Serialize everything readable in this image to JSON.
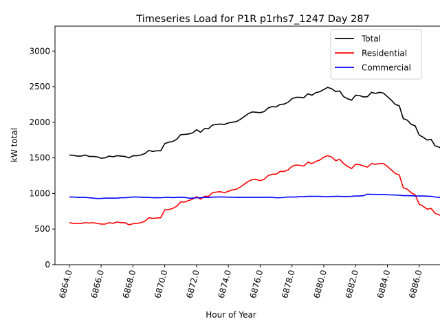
{
  "chart_data": {
    "type": "line",
    "title": "Timeseries Load for P1R p1rhs7_1247  Day 287",
    "xlabel": "Hour of Year",
    "ylabel": "kW total",
    "xlim": [
      6863.1,
      6888.0
    ],
    "ylim": [
      0,
      3350
    ],
    "xticks": [
      6864,
      6866,
      6868,
      6870,
      6872,
      6874,
      6876,
      6878,
      6880,
      6882,
      6884,
      6886
    ],
    "xtick_labels": [
      "6864.0",
      "6866.0",
      "6868.0",
      "6870.0",
      "6872.0",
      "6874.0",
      "6876.0",
      "6878.0",
      "6880.0",
      "6882.0",
      "6884.0",
      "6886.0"
    ],
    "yticks": [
      0,
      500,
      1000,
      1500,
      2000,
      2500,
      3000
    ],
    "ytick_labels": [
      "0",
      "500",
      "1000",
      "1500",
      "2000",
      "2500",
      "3000"
    ],
    "grid": false,
    "legend_position": "top-right",
    "x_start": 6864.0,
    "x_step": 0.25,
    "series": [
      {
        "name": "Total",
        "color": "#000000",
        "values": [
          1540,
          1535,
          1525,
          1525,
          1540,
          1520,
          1520,
          1515,
          1495,
          1500,
          1525,
          1515,
          1530,
          1525,
          1520,
          1500,
          1530,
          1530,
          1540,
          1560,
          1605,
          1590,
          1600,
          1600,
          1700,
          1720,
          1730,
          1760,
          1825,
          1830,
          1835,
          1850,
          1895,
          1860,
          1910,
          1910,
          1960,
          1970,
          1975,
          1970,
          1990,
          2000,
          2010,
          2040,
          2080,
          2120,
          2145,
          2140,
          2135,
          2150,
          2200,
          2220,
          2215,
          2250,
          2255,
          2280,
          2330,
          2350,
          2350,
          2345,
          2400,
          2380,
          2415,
          2430,
          2460,
          2490,
          2470,
          2430,
          2440,
          2360,
          2330,
          2310,
          2380,
          2375,
          2355,
          2360,
          2420,
          2405,
          2420,
          2410,
          2360,
          2310,
          2250,
          2230,
          2050,
          2030,
          1970,
          1950,
          1820,
          1790,
          1750,
          1760,
          1670,
          1650,
          1620,
          1610
        ]
      },
      {
        "name": "Residential",
        "color": "#ff0000",
        "values": [
          590,
          580,
          580,
          580,
          590,
          585,
          590,
          580,
          570,
          570,
          590,
          580,
          600,
          590,
          590,
          560,
          575,
          580,
          590,
          610,
          660,
          650,
          655,
          660,
          770,
          775,
          790,
          820,
          880,
          880,
          900,
          920,
          955,
          920,
          960,
          960,
          1010,
          1020,
          1025,
          1010,
          1030,
          1050,
          1060,
          1090,
          1130,
          1170,
          1195,
          1195,
          1180,
          1200,
          1250,
          1270,
          1270,
          1310,
          1310,
          1330,
          1380,
          1400,
          1395,
          1385,
          1440,
          1420,
          1450,
          1470,
          1510,
          1530,
          1510,
          1460,
          1480,
          1420,
          1380,
          1350,
          1410,
          1405,
          1385,
          1370,
          1420,
          1410,
          1420,
          1420,
          1380,
          1330,
          1280,
          1260,
          1080,
          1060,
          1010,
          980,
          850,
          820,
          780,
          790,
          720,
          700,
          680,
          680
        ]
      },
      {
        "name": "Commercial",
        "color": "#0000ff",
        "values": [
          950,
          950,
          945,
          945,
          945,
          940,
          935,
          930,
          930,
          935,
          935,
          935,
          935,
          940,
          940,
          945,
          950,
          950,
          948,
          945,
          945,
          940,
          942,
          940,
          945,
          945,
          942,
          945,
          945,
          945,
          935,
          935,
          940,
          940,
          945,
          945,
          948,
          950,
          950,
          950,
          948,
          948,
          945,
          945,
          945,
          945,
          945,
          945,
          945,
          945,
          948,
          945,
          940,
          940,
          945,
          950,
          950,
          950,
          955,
          955,
          960,
          960,
          960,
          960,
          955,
          955,
          958,
          960,
          960,
          958,
          958,
          960,
          965,
          965,
          970,
          990,
          988,
          988,
          985,
          985,
          982,
          980,
          978,
          975,
          970,
          970,
          968,
          965,
          965,
          965,
          962,
          960,
          950,
          945,
          938,
          932
        ]
      }
    ]
  }
}
